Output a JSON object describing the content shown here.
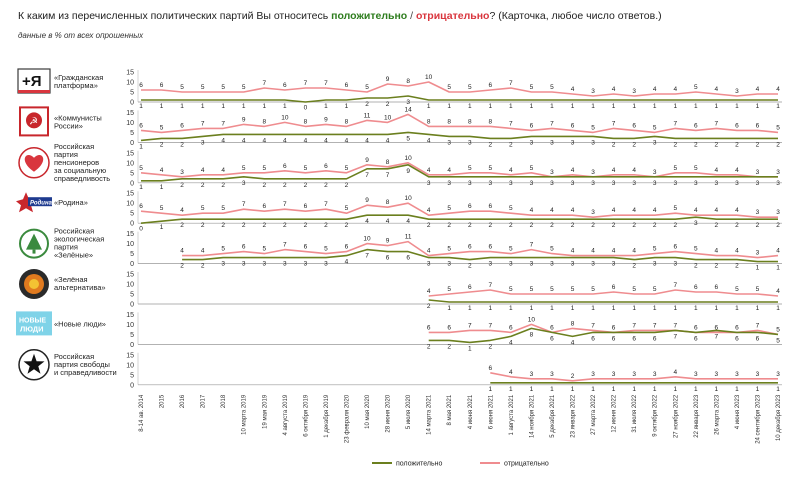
{
  "title": {
    "prefix": "К каким из перечисленных политических партий Вы относитесь ",
    "positive": "положительно",
    "separator": " / ",
    "negative": "отрицательно",
    "suffix": "? (Карточка, любое число ответов.)"
  },
  "subtitle": "данные в % от всех опрошенных",
  "colors": {
    "positive": "#6b7f1e",
    "negative": "#ef8c8f"
  },
  "chart_data": {
    "type": "line",
    "ylim": [
      0,
      15
    ],
    "yticks": [
      0,
      5,
      10,
      15
    ],
    "x": [
      "8-14 ав. 2014",
      "2015",
      "2016",
      "2017",
      "2018",
      "10 марта 2019",
      "19 мая 2019",
      "4 августа 2019",
      "6 октября 2019",
      "1 декабря 2019",
      "23 февраля 2020",
      "10 мая 2020",
      "28 июня 2020",
      "5 июля 2020",
      "14 марта 2021",
      "8 мая 2021",
      "4 июня 2021",
      "6 июня 2021",
      "1 августа 2021",
      "14 ноября 2021",
      "5 декабря 2021",
      "23 января 2022",
      "27 марта 2022",
      "12 июня 2022",
      "31 июля 2022",
      "9 октября 2022",
      "27 ноября 2022",
      "22 января 2023",
      "26 марта 2023",
      "4 июня 2023",
      "24 сентября 2023",
      "10 декабря 2023"
    ],
    "legend": [
      "положительно",
      "отрицательно"
    ],
    "series": [
      {
        "party": [
          "«Гражданская",
          "платформа»"
        ],
        "logo": "plus-ya-logo",
        "positive": [
          1,
          1,
          1,
          1,
          1,
          1,
          1,
          1,
          0,
          1,
          1,
          2,
          2,
          3,
          1,
          1,
          1,
          1,
          1,
          1,
          1,
          1,
          1,
          1,
          1,
          1,
          1,
          1,
          1,
          1,
          1,
          1
        ],
        "negative": [
          6,
          6,
          5,
          5,
          5,
          5,
          7,
          6,
          7,
          7,
          6,
          5,
          9,
          8,
          10,
          5,
          5,
          6,
          7,
          5,
          5,
          4,
          3,
          4,
          3,
          4,
          4,
          5,
          4,
          3,
          4,
          4
        ]
      },
      {
        "party": [
          "«Коммунисты",
          "России»"
        ],
        "logo": "kommunisty-logo",
        "positive": [
          1,
          2,
          2,
          3,
          4,
          4,
          4,
          4,
          4,
          4,
          4,
          4,
          4,
          5,
          4,
          3,
          3,
          2,
          2,
          3,
          3,
          3,
          3,
          2,
          2,
          3,
          2,
          2,
          2,
          2,
          2,
          2
        ],
        "negative": [
          6,
          5,
          6,
          7,
          7,
          9,
          8,
          10,
          8,
          9,
          8,
          11,
          10,
          14,
          8,
          8,
          8,
          8,
          7,
          6,
          7,
          6,
          5,
          7,
          6,
          5,
          7,
          6,
          7,
          6,
          6,
          5
        ]
      },
      {
        "party": [
          "Российская",
          "партия",
          "пенсионеров",
          "за социальную",
          "справедливость"
        ],
        "logo": "heart-logo",
        "positive": [
          1,
          1,
          2,
          2,
          2,
          3,
          2,
          2,
          2,
          2,
          2,
          7,
          7,
          9,
          3,
          3,
          3,
          3,
          3,
          3,
          3,
          3,
          3,
          3,
          3,
          3,
          3,
          3,
          3,
          3,
          3,
          3
        ],
        "negative": [
          5,
          4,
          3,
          4,
          4,
          5,
          5,
          6,
          5,
          6,
          5,
          9,
          8,
          10,
          4,
          4,
          5,
          5,
          4,
          5,
          3,
          4,
          3,
          4,
          4,
          3,
          5,
          5,
          4,
          4,
          3,
          3
        ]
      },
      {
        "party": [
          "«Родина»"
        ],
        "logo": "rodina-logo",
        "positive": [
          0,
          1,
          2,
          2,
          2,
          2,
          2,
          2,
          2,
          2,
          2,
          4,
          4,
          4,
          2,
          2,
          2,
          2,
          2,
          2,
          2,
          2,
          2,
          2,
          2,
          2,
          2,
          3,
          2,
          2,
          2,
          2
        ],
        "negative": [
          6,
          5,
          4,
          5,
          5,
          7,
          6,
          7,
          6,
          7,
          5,
          9,
          8,
          10,
          4,
          5,
          6,
          6,
          5,
          4,
          4,
          4,
          3,
          4,
          4,
          4,
          5,
          4,
          4,
          4,
          3,
          3
        ]
      },
      {
        "party": [
          "Российская",
          "экологическая",
          "партия",
          "«Зелёные»"
        ],
        "logo": "zelenye-logo",
        "positive": [
          null,
          null,
          2,
          2,
          3,
          3,
          3,
          3,
          3,
          3,
          4,
          7,
          6,
          6,
          3,
          3,
          2,
          3,
          3,
          3,
          3,
          3,
          3,
          3,
          2,
          3,
          3,
          2,
          2,
          2,
          1,
          1
        ],
        "negative": [
          null,
          null,
          4,
          4,
          5,
          6,
          5,
          7,
          6,
          5,
          6,
          10,
          9,
          11,
          4,
          5,
          6,
          6,
          5,
          7,
          5,
          4,
          4,
          4,
          4,
          5,
          6,
          5,
          4,
          4,
          3,
          4
        ]
      },
      {
        "party": [
          "«Зелёная",
          "альтернатива»"
        ],
        "logo": "zelenaya-alternativa-logo",
        "positive": [
          null,
          null,
          null,
          null,
          null,
          null,
          null,
          null,
          null,
          null,
          null,
          null,
          null,
          null,
          2,
          1,
          1,
          1,
          1,
          1,
          1,
          1,
          1,
          1,
          1,
          1,
          1,
          1,
          1,
          1,
          1,
          1
        ],
        "negative": [
          null,
          null,
          null,
          null,
          null,
          null,
          null,
          null,
          null,
          null,
          null,
          null,
          null,
          null,
          4,
          5,
          6,
          7,
          5,
          5,
          5,
          5,
          5,
          6,
          5,
          5,
          7,
          6,
          6,
          5,
          5,
          4
        ]
      },
      {
        "party": [
          "«Новые люди»"
        ],
        "logo": "novye-lyudi-logo",
        "positive": [
          null,
          null,
          null,
          null,
          null,
          null,
          null,
          null,
          null,
          null,
          null,
          null,
          null,
          null,
          2,
          2,
          1,
          2,
          4,
          8,
          6,
          4,
          6,
          6,
          6,
          6,
          7,
          6,
          7,
          6,
          6,
          5
        ],
        "negative": [
          null,
          null,
          null,
          null,
          null,
          null,
          null,
          null,
          null,
          null,
          null,
          null,
          null,
          null,
          6,
          6,
          7,
          7,
          6,
          10,
          6,
          8,
          7,
          6,
          7,
          7,
          7,
          6,
          6,
          6,
          7,
          5
        ]
      },
      {
        "party": [
          "Российская",
          "партия свободы",
          "и справедливости"
        ],
        "logo": "star-logo",
        "positive": [
          null,
          null,
          null,
          null,
          null,
          null,
          null,
          null,
          null,
          null,
          null,
          null,
          null,
          null,
          null,
          null,
          null,
          1,
          1,
          1,
          1,
          1,
          1,
          1,
          1,
          1,
          1,
          1,
          1,
          1,
          1,
          1
        ],
        "negative": [
          null,
          null,
          null,
          null,
          null,
          null,
          null,
          null,
          null,
          null,
          null,
          null,
          null,
          null,
          null,
          null,
          null,
          6,
          4,
          3,
          3,
          2,
          3,
          3,
          3,
          3,
          4,
          3,
          3,
          3,
          3,
          3
        ]
      }
    ]
  }
}
